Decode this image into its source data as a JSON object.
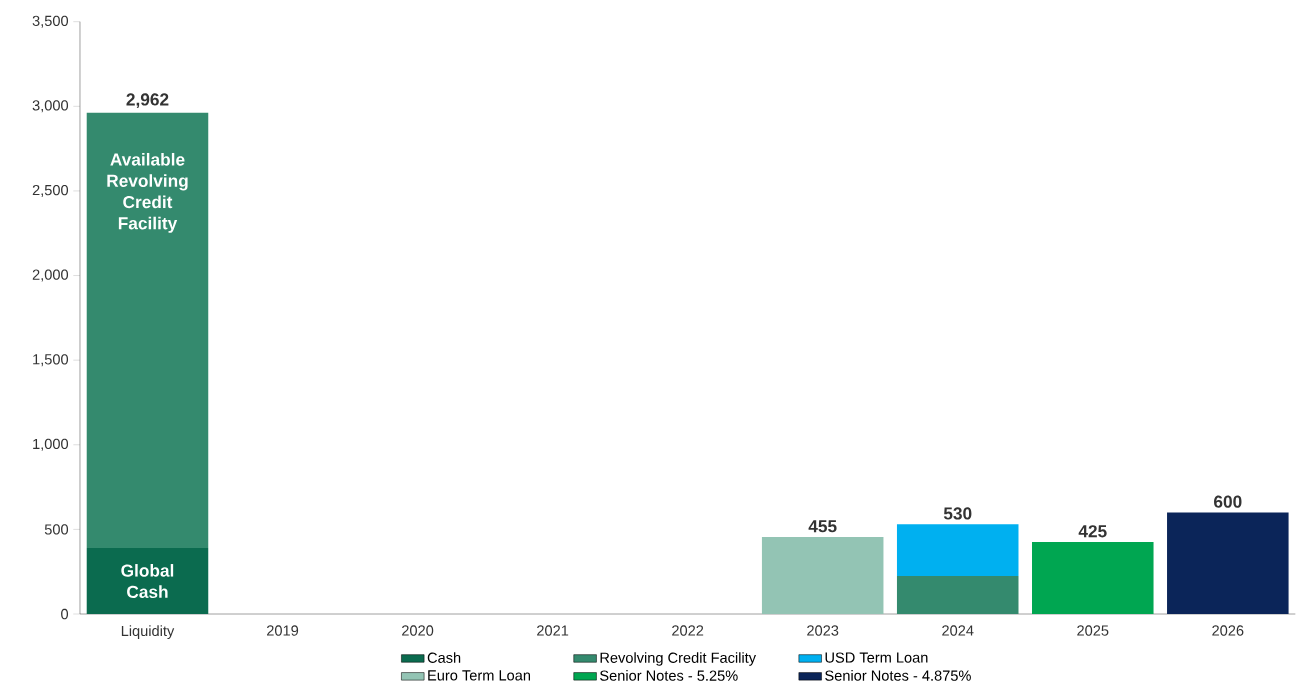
{
  "chart_data": {
    "type": "bar",
    "stacked": true,
    "categories": [
      "Liquidity",
      "2019",
      "2020",
      "2021",
      "2022",
      "2023",
      "2024",
      "2025",
      "2026"
    ],
    "series": [
      {
        "name": "Cash",
        "color": "#0b6b4f",
        "values": [
          390,
          null,
          null,
          null,
          null,
          null,
          null,
          null,
          null
        ]
      },
      {
        "name": "Revolving Credit Facility",
        "color": "#348a6e",
        "values": [
          2572,
          null,
          null,
          null,
          null,
          null,
          225,
          null,
          null
        ]
      },
      {
        "name": "USD Term Loan",
        "color": "#00b0f0",
        "values": [
          null,
          null,
          null,
          null,
          null,
          null,
          305,
          null,
          null
        ]
      },
      {
        "name": "Euro Term Loan",
        "color": "#93c4b4",
        "values": [
          null,
          null,
          null,
          null,
          null,
          455,
          null,
          null,
          null
        ]
      },
      {
        "name": "Senior  Notes - 5.25%",
        "color": "#00a651",
        "values": [
          null,
          null,
          null,
          null,
          null,
          null,
          null,
          425,
          null
        ]
      },
      {
        "name": "Senior Notes - 4.875%",
        "color": "#0b2559",
        "values": [
          null,
          null,
          null,
          null,
          null,
          null,
          null,
          null,
          600
        ]
      }
    ],
    "totals": [
      "2,962",
      null,
      null,
      null,
      null,
      "455",
      "530",
      "425",
      "600"
    ],
    "annotations": [
      "Available Revolving Credit Facility",
      "Global Cash"
    ],
    "ylim": [
      0,
      3500
    ],
    "yticks": [
      {
        "value": 0,
        "label": "0"
      },
      {
        "value": 500,
        "label": "500"
      },
      {
        "value": 1000,
        "label": "1,000"
      },
      {
        "value": 1500,
        "label": "1,500"
      },
      {
        "value": 2000,
        "label": "2,000"
      },
      {
        "value": 2500,
        "label": "2,500"
      },
      {
        "value": 3000,
        "label": "3,000"
      },
      {
        "value": 3500,
        "label": "3,500"
      }
    ],
    "legend": "bottom",
    "grid": false
  }
}
